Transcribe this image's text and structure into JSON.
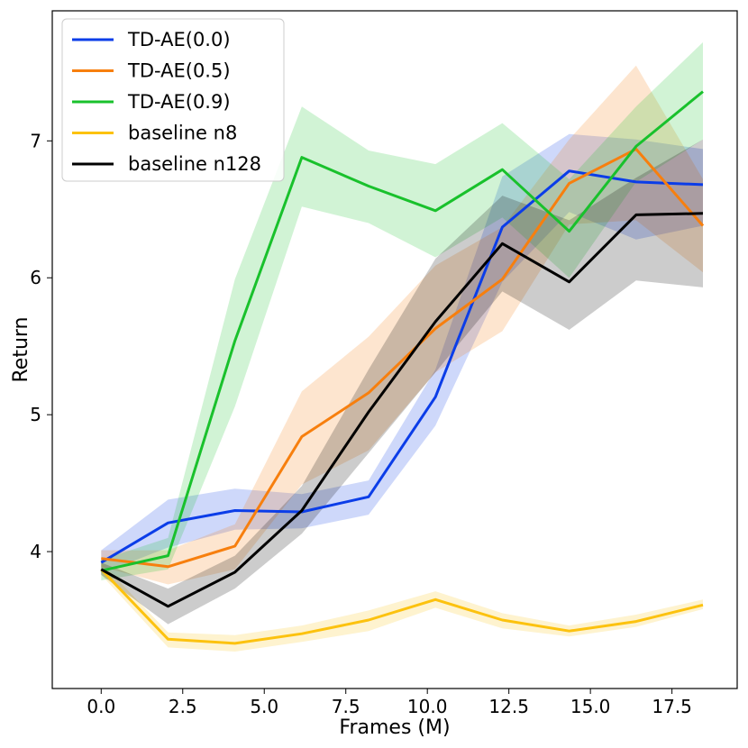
{
  "chart_data": {
    "type": "line",
    "title": "",
    "xlabel": "Frames (M)",
    "ylabel": "Return",
    "xlim": [
      -1.5,
      19.5
    ],
    "ylim": [
      3.0,
      7.95
    ],
    "xticks": [
      0.0,
      2.5,
      5.0,
      7.5,
      10.0,
      12.5,
      15.0,
      17.5
    ],
    "xtick_labels": [
      "0.0",
      "2.5",
      "5.0",
      "7.5",
      "10.0",
      "12.5",
      "15.0",
      "17.5"
    ],
    "yticks": [
      4,
      5,
      6,
      7
    ],
    "ytick_labels": [
      "4",
      "5",
      "6",
      "7"
    ],
    "legend_position": "top-left",
    "series": [
      {
        "name": "TD-AE(0.0)",
        "color": "#0b3de8",
        "x": [
          0.0,
          2.05,
          4.1,
          6.15,
          8.2,
          10.25,
          12.3,
          14.35,
          16.4,
          18.45
        ],
        "y": [
          3.92,
          4.21,
          4.3,
          4.29,
          4.4,
          5.13,
          6.37,
          6.78,
          6.7,
          6.68
        ],
        "lower": [
          3.84,
          4.03,
          4.16,
          4.17,
          4.27,
          4.92,
          5.97,
          6.48,
          6.28,
          6.38
        ],
        "upper": [
          4.01,
          4.38,
          4.46,
          4.42,
          4.52,
          5.33,
          6.74,
          7.05,
          7.01,
          6.94
        ]
      },
      {
        "name": "TD-AE(0.5)",
        "color": "#f77f0e",
        "x": [
          0.0,
          2.05,
          4.1,
          6.15,
          8.2,
          10.25,
          12.3,
          14.35,
          16.4,
          18.45
        ],
        "y": [
          3.95,
          3.89,
          4.04,
          4.84,
          5.16,
          5.63,
          5.99,
          6.69,
          6.94,
          6.38
        ],
        "lower": [
          3.89,
          3.76,
          3.87,
          4.49,
          4.74,
          5.31,
          5.61,
          6.39,
          6.42,
          6.04
        ],
        "upper": [
          4.01,
          4.01,
          4.2,
          5.17,
          5.57,
          6.09,
          6.37,
          7.01,
          7.55,
          6.72
        ]
      },
      {
        "name": "TD-AE(0.9)",
        "color": "#19c12c",
        "x": [
          0.0,
          2.05,
          4.1,
          6.15,
          8.2,
          10.25,
          12.3,
          14.35,
          16.4,
          18.45
        ],
        "y": [
          3.86,
          3.97,
          5.54,
          6.88,
          6.67,
          6.49,
          6.79,
          6.34,
          6.96,
          7.36
        ],
        "lower": [
          3.79,
          3.87,
          5.06,
          6.52,
          6.4,
          6.15,
          6.44,
          6.0,
          6.7,
          7.01
        ],
        "upper": [
          3.94,
          4.1,
          5.99,
          7.25,
          6.93,
          6.83,
          7.13,
          6.72,
          7.25,
          7.72
        ]
      },
      {
        "name": "baseline n8",
        "color": "#fcc20f",
        "x": [
          0.0,
          2.05,
          4.1,
          6.15,
          8.2,
          10.25,
          12.3,
          14.35,
          16.4,
          18.45
        ],
        "y": [
          3.87,
          3.36,
          3.33,
          3.4,
          3.5,
          3.65,
          3.5,
          3.42,
          3.49,
          3.61
        ],
        "lower": [
          3.83,
          3.3,
          3.27,
          3.34,
          3.42,
          3.59,
          3.44,
          3.38,
          3.45,
          3.58
        ],
        "upper": [
          3.92,
          3.41,
          3.39,
          3.46,
          3.57,
          3.71,
          3.55,
          3.46,
          3.54,
          3.65
        ]
      },
      {
        "name": "baseline n128",
        "color": "#000000",
        "x": [
          0.0,
          2.05,
          4.1,
          6.15,
          8.2,
          10.25,
          12.3,
          14.35,
          16.4,
          18.45
        ],
        "y": [
          3.87,
          3.6,
          3.85,
          4.3,
          5.02,
          5.68,
          6.25,
          5.97,
          6.46,
          6.47
        ],
        "lower": [
          3.83,
          3.47,
          3.73,
          4.13,
          4.72,
          5.31,
          5.9,
          5.62,
          5.98,
          5.93
        ],
        "upper": [
          3.92,
          3.73,
          3.97,
          4.48,
          5.33,
          6.14,
          6.6,
          6.42,
          6.73,
          7.01
        ]
      }
    ]
  }
}
